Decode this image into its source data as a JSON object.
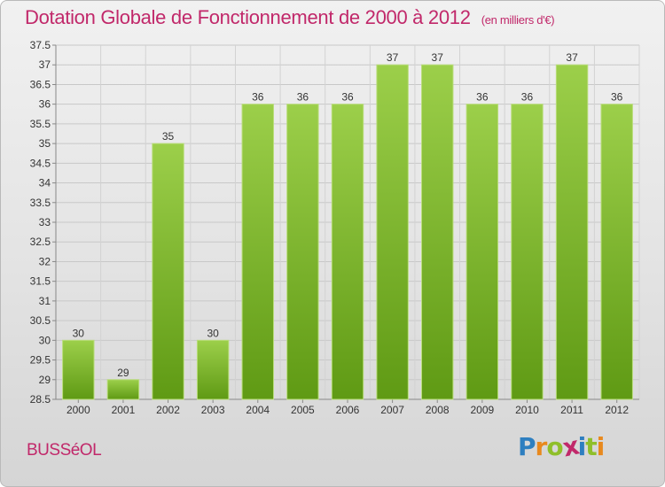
{
  "header": {
    "title": "Dotation Globale de Fonctionnement de 2000 à 2012",
    "unit": "(en milliers d'€)"
  },
  "footer": {
    "commune": "BUSSéOL",
    "logo_letters": [
      "P",
      "r",
      "o",
      "x",
      "i",
      "t",
      "i"
    ],
    "logo_colors": [
      "#2e7fc0",
      "#e8891e",
      "#8fbf2a",
      "#c1286a",
      "#2e7fc0",
      "#8fbf2a",
      "#e8891e"
    ]
  },
  "chart_data": {
    "type": "bar",
    "categories": [
      "2000",
      "2001",
      "2002",
      "2003",
      "2004",
      "2005",
      "2006",
      "2007",
      "2008",
      "2009",
      "2010",
      "2011",
      "2012"
    ],
    "values": [
      30,
      29,
      35,
      30,
      36,
      36,
      36,
      37,
      37,
      36,
      36,
      37,
      36
    ],
    "ylim": [
      28.5,
      37.5
    ],
    "yticks": [
      "28.5",
      "29",
      "29.5",
      "30",
      "30.5",
      "31",
      "31.5",
      "32",
      "32.5",
      "33",
      "33.5",
      "34",
      "34.5",
      "35",
      "35.5",
      "36",
      "36.5",
      "37",
      "37.5"
    ],
    "grid": true,
    "bar_color": "#7fba2e",
    "xlabel": "",
    "ylabel": ""
  }
}
